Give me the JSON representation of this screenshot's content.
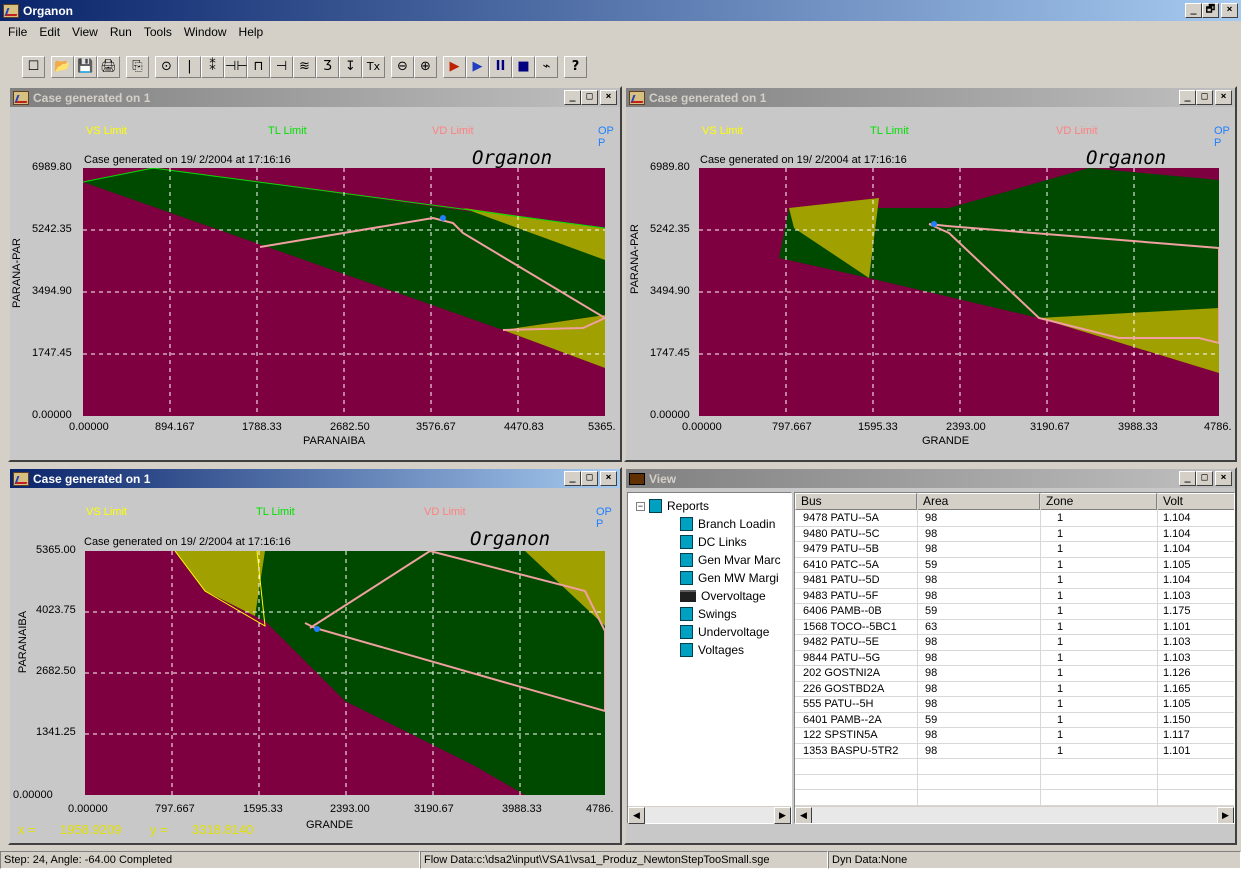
{
  "app": {
    "title": "Organon"
  },
  "menu": [
    "File",
    "Edit",
    "View",
    "Run",
    "Tools",
    "Window",
    "Help"
  ],
  "toolbar": [
    "☐",
    "📂",
    "💾",
    "🖨",
    "⎘",
    "⊙",
    "|",
    "⁑",
    "⊣⊢",
    "⊓",
    "⊣",
    "≋",
    "Ʒ",
    "↧",
    "Tx",
    "⊖",
    "⊕",
    "▶",
    "▶",
    "II",
    "■",
    "⌁",
    "?"
  ],
  "wb": {
    "min": "_",
    "max": "□",
    "close": "×",
    "restore": "🗗"
  },
  "win1": {
    "title": "Case generated on 1",
    "legends": [
      "VS Limit",
      "TL Limit",
      "VD Limit",
      "OP P"
    ],
    "caption": "Case generated on 19/ 2/2004 at 17:16:16",
    "logo": "Organon",
    "yticks": [
      "6989.80",
      "5242.35",
      "3494.90",
      "1747.45",
      "0.00000"
    ],
    "xticks": [
      "0.00000",
      "894.167",
      "1788.33",
      "2682.50",
      "3576.67",
      "4470.83",
      "5365."
    ],
    "xlabel": "PARANAIBA",
    "ylabel": "PARANA-PAR"
  },
  "win2": {
    "title": "Case generated on 1",
    "legends": [
      "VS Limit",
      "TL Limit",
      "VD Limit",
      "OP P"
    ],
    "caption": "Case generated on 19/ 2/2004 at 17:16:16",
    "logo": "Organon",
    "yticks": [
      "6989.80",
      "5242.35",
      "3494.90",
      "1747.45",
      "0.00000"
    ],
    "xticks": [
      "0.00000",
      "797.667",
      "1595.33",
      "2393.00",
      "3190.67",
      "3988.33",
      "4786."
    ],
    "xlabel": "GRANDE",
    "ylabel": "PARANA-PAR"
  },
  "win3": {
    "title": "Case generated on 1",
    "legends": [
      "VS Limit",
      "TL Limit",
      "VD Limit",
      "OP P"
    ],
    "caption": "Case generated on 19/ 2/2004 at 17:16:16",
    "logo": "Organon",
    "yticks": [
      "5365.00",
      "4023.75",
      "2682.50",
      "1341.25",
      "0.00000"
    ],
    "xticks": [
      "0.00000",
      "797.667",
      "1595.33",
      "2393.00",
      "3190.67",
      "3988.33",
      "4786."
    ],
    "xlabel": "GRANDE",
    "ylabel": "PARANAIBA",
    "readout": {
      "x_label": "x =",
      "x": "1958.9209",
      "y_label": "y =",
      "y": "3318.8140"
    }
  },
  "view": {
    "title": "View",
    "tree": {
      "root": "Reports",
      "items": [
        "Branch Loadin",
        "DC Links",
        "Gen Mvar Marc",
        "Gen MW Margi",
        "Overvoltage",
        "Swings",
        "Undervoltage",
        "Voltages"
      ]
    },
    "columns": [
      "Bus",
      "Area",
      "Zone",
      "Volt"
    ],
    "rows": [
      [
        "9478 PATU--5A",
        "98",
        "1",
        "1.104"
      ],
      [
        "9480 PATU--5C",
        "98",
        "1",
        "1.104"
      ],
      [
        "9479 PATU--5B",
        "98",
        "1",
        "1.104"
      ],
      [
        "6410 PATC--5A",
        "59",
        "1",
        "1.105"
      ],
      [
        "9481 PATU--5D",
        "98",
        "1",
        "1.104"
      ],
      [
        "9483 PATU--5F",
        "98",
        "1",
        "1.103"
      ],
      [
        "6406 PAMB--0B",
        "59",
        "1",
        "1.175"
      ],
      [
        "1568 TOCO--5BC1",
        "63",
        "1",
        "1.101"
      ],
      [
        "9482 PATU--5E",
        "98",
        "1",
        "1.103"
      ],
      [
        "9844 PATU--5G",
        "98",
        "1",
        "1.103"
      ],
      [
        " 202 GOSTNI2A",
        "98",
        "1",
        "1.126"
      ],
      [
        " 226 GOSTBD2A",
        "98",
        "1",
        "1.165"
      ],
      [
        " 555 PATU--5H",
        "98",
        "1",
        "1.105"
      ],
      [
        "6401 PAMB--2A",
        "59",
        "1",
        "1.150"
      ],
      [
        " 122 SPSTIN5A",
        "98",
        "1",
        "1.117"
      ],
      [
        "1353 BASPU-5TR2",
        "98",
        "1",
        "1.101"
      ]
    ]
  },
  "status": {
    "step": "Step: 24, Angle: -64.00 Completed",
    "flow": "Flow Data:c:\\dsa2\\input\\VSA1\\vsa1_Produz_NewtonStepTooSmall.sge",
    "dyn": "Dyn  Data:None"
  },
  "colors": {
    "maroon": "#7f0040",
    "green": "#004a00",
    "olive": "#a0a000",
    "path": "#f0a0a0",
    "tl": "#00e000",
    "vs": "#ffff00",
    "vd": "#ff8080",
    "op": "#2080ff"
  }
}
